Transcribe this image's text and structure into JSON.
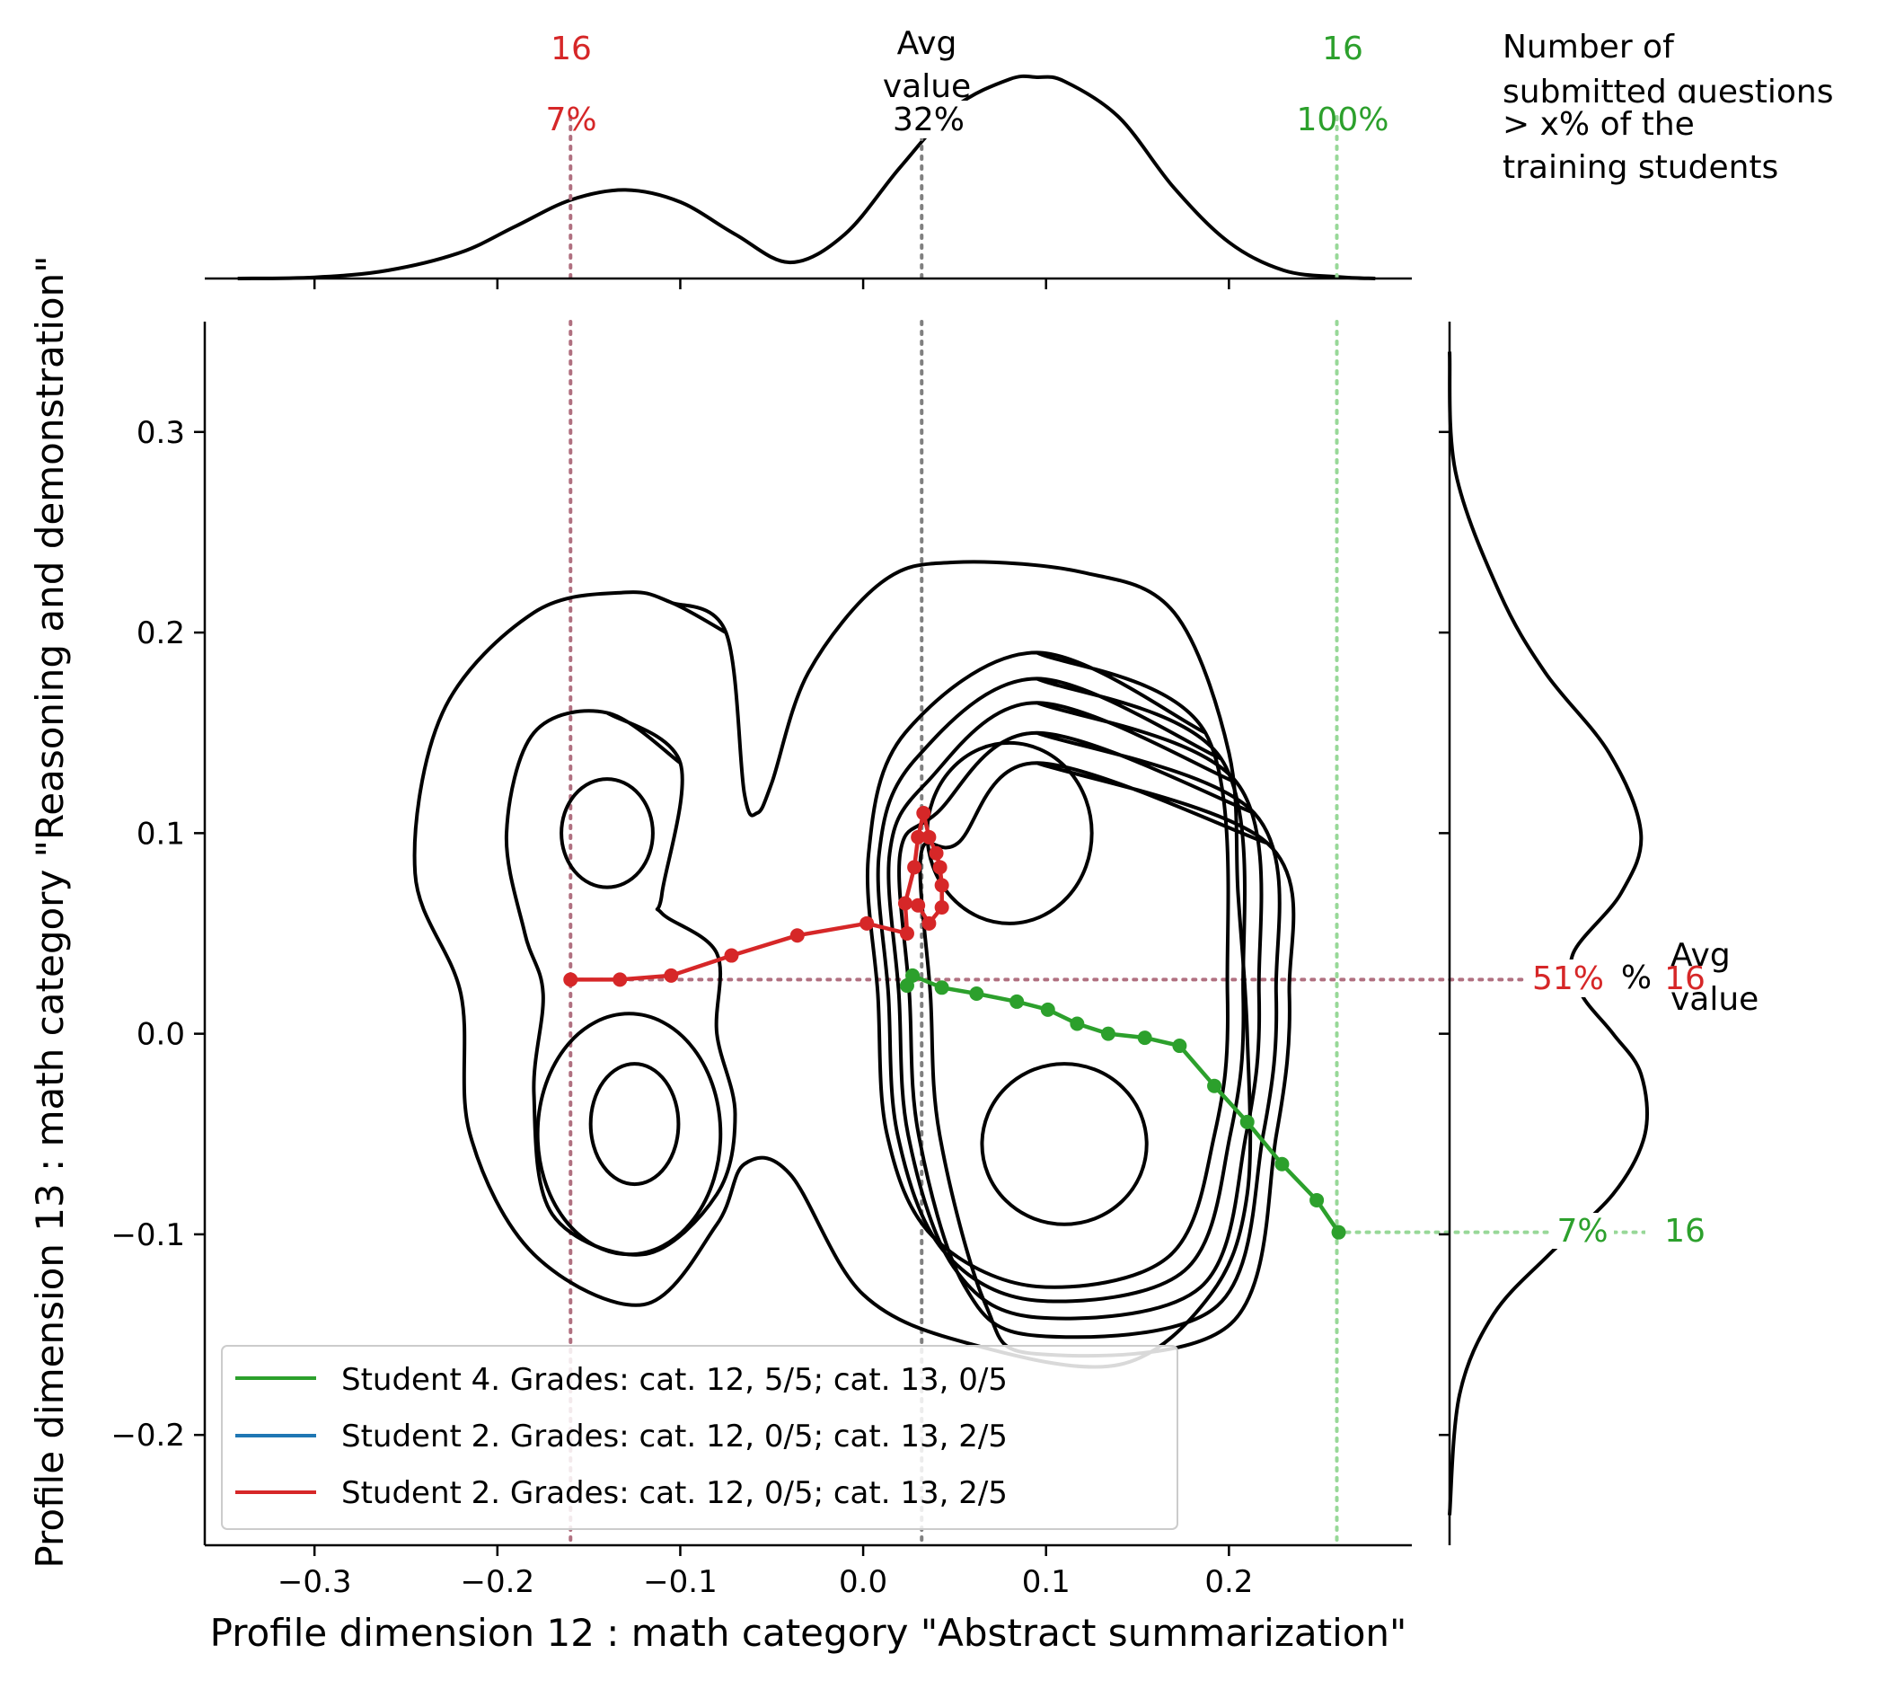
{
  "chart_data": {
    "type": "scatter",
    "xlabel": "Profile dimension 12 : math category \"Abstract summarization\"",
    "ylabel": "Profile dimension 13 : math category \"Reasoning and demonstration\"",
    "xlim": [
      -0.36,
      0.3
    ],
    "ylim": [
      -0.255,
      0.355
    ],
    "xticks": [
      -0.3,
      -0.2,
      -0.1,
      0.0,
      0.1,
      0.2
    ],
    "xtick_labels": [
      "−0.3",
      "−0.2",
      "−0.1",
      "0.0",
      "0.1",
      "0.2"
    ],
    "yticks": [
      -0.2,
      -0.1,
      0.0,
      0.1,
      0.2,
      0.3
    ],
    "ytick_labels": [
      "−0.2",
      "−0.1",
      "0.0",
      "0.1",
      "0.2",
      "0.3"
    ],
    "grid": false,
    "legend_position": "lower-left",
    "colors": {
      "green": "#2ca02c",
      "blue": "#1f77b4",
      "red": "#d62728",
      "avg": "#808080",
      "mauve": "#b07080",
      "lightgreen": "#98d898"
    },
    "series": [
      {
        "name": "Student 4. Grades: cat. 12, 5/5; cat. 13, 0/5",
        "color": "#2ca02c",
        "x": [
          0.024,
          0.027,
          0.043,
          0.062,
          0.084,
          0.101,
          0.117,
          0.134,
          0.154,
          0.173,
          0.192,
          0.21,
          0.229,
          0.248,
          0.26
        ],
        "y": [
          0.024,
          0.029,
          0.023,
          0.02,
          0.016,
          0.012,
          0.005,
          0.0,
          -0.002,
          -0.006,
          -0.026,
          -0.044,
          -0.065,
          -0.083,
          -0.099
        ]
      },
      {
        "name": "Student 2. Grades: cat. 12, 0/5; cat. 13, 2/5",
        "color": "#1f77b4",
        "x": [],
        "y": []
      },
      {
        "name": "Student 2. Grades: cat. 12, 0/5; cat. 13, 2/5",
        "color": "#d62728",
        "x": [
          -0.16,
          -0.133,
          -0.105,
          -0.072,
          -0.036,
          0.002,
          0.024,
          0.023,
          0.028,
          0.03,
          0.033,
          0.036,
          0.04,
          0.042,
          0.043,
          0.043,
          0.036,
          0.03
        ],
        "y": [
          0.027,
          0.027,
          0.029,
          0.039,
          0.049,
          0.055,
          0.05,
          0.065,
          0.083,
          0.098,
          0.11,
          0.098,
          0.09,
          0.083,
          0.074,
          0.063,
          0.055,
          0.064
        ]
      }
    ],
    "kde_top": {
      "x": [
        -0.342,
        -0.3,
        -0.26,
        -0.22,
        -0.19,
        -0.16,
        -0.13,
        -0.1,
        -0.07,
        -0.04,
        -0.01,
        0.02,
        0.05,
        0.08,
        0.095,
        0.11,
        0.14,
        0.17,
        0.2,
        0.23,
        0.26,
        0.28
      ],
      "density": [
        0.0,
        0.006,
        0.04,
        0.13,
        0.26,
        0.39,
        0.44,
        0.38,
        0.22,
        0.08,
        0.22,
        0.55,
        0.85,
        0.99,
        1.0,
        0.98,
        0.8,
        0.45,
        0.18,
        0.04,
        0.008,
        0.0
      ]
    },
    "kde_right": {
      "y": [
        0.34,
        0.28,
        0.22,
        0.18,
        0.14,
        0.1,
        0.07,
        0.04,
        0.02,
        0.0,
        -0.02,
        -0.05,
        -0.08,
        -0.11,
        -0.14,
        -0.18,
        -0.24
      ],
      "density": [
        0.0,
        0.03,
        0.25,
        0.48,
        0.8,
        0.96,
        0.86,
        0.62,
        0.66,
        0.82,
        0.96,
        0.98,
        0.82,
        0.5,
        0.22,
        0.05,
        0.0
      ]
    },
    "kde_contours": [
      {
        "cx": -0.14,
        "cy": 0.1,
        "rx": 0.025,
        "ry": 0.027
      },
      {
        "cx": -0.125,
        "cy": -0.045,
        "rx": 0.024,
        "ry": 0.03
      },
      {
        "cx": -0.128,
        "cy": -0.05,
        "rx": 0.05,
        "ry": 0.06
      },
      {
        "cx": 0.08,
        "cy": 0.1,
        "rx": 0.045,
        "ry": 0.045
      },
      {
        "cx": 0.11,
        "cy": -0.055,
        "rx": 0.045,
        "ry": 0.04
      }
    ],
    "ref_lines": {
      "red_x": -0.16,
      "avg_x": 0.032,
      "green_x": 0.259,
      "row_y": 0.027,
      "green_y": -0.099
    },
    "annotations": {
      "top_red_count": "16",
      "top_red_pct": "7%",
      "top_avg_line1": "Avg",
      "top_avg_line2": "value",
      "top_avg_pct": "32%",
      "top_green_count": "16",
      "top_green_pct": "100%",
      "right_red_pct": "51%",
      "right_avg_pct": "%",
      "right_red_count": "16",
      "right_avg_line1": "Avg",
      "right_avg_line2": "value",
      "right_green_pct": "7%",
      "right_green_count": "16",
      "legend_caption_line1": "Number of",
      "legend_caption_line2": "submitted questions",
      "legend_caption_line3": "> x% of the",
      "legend_caption_line4": "training students"
    }
  }
}
